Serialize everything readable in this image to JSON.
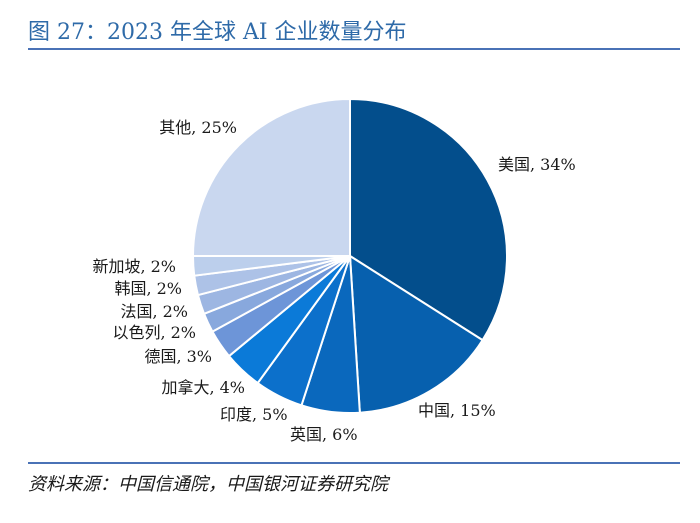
{
  "header": {
    "title": "图 27：2023 年全球 AI 企业数量分布"
  },
  "footer": {
    "source": "资料来源：中国信通院，中国银河证券研究院"
  },
  "chart_data": {
    "type": "pie",
    "title": "图 27：2023 年全球 AI 企业数量分布",
    "slices": [
      {
        "name": "美国",
        "value": 34,
        "label": "美国, 34%",
        "color": "#034e8c"
      },
      {
        "name": "中国",
        "value": 15,
        "label": "中国, 15%",
        "color": "#0760ae"
      },
      {
        "name": "英国",
        "value": 6,
        "label": "英国, 6%",
        "color": "#0a68bd"
      },
      {
        "name": "印度",
        "value": 5,
        "label": "印度, 5%",
        "color": "#0c70cb"
      },
      {
        "name": "加拿大",
        "value": 4,
        "label": "加拿大, 4%",
        "color": "#0b7ad8"
      },
      {
        "name": "德国",
        "value": 3,
        "label": "德国, 3%",
        "color": "#6d95d8"
      },
      {
        "name": "以色列",
        "value": 2,
        "label": "以色列, 2%",
        "color": "#88a8dd"
      },
      {
        "name": "法国",
        "value": 2,
        "label": "法国, 2%",
        "color": "#9db6e2"
      },
      {
        "name": "韩国",
        "value": 2,
        "label": "韩国, 2%",
        "color": "#adc2e7"
      },
      {
        "name": "新加坡",
        "value": 2,
        "label": "新加坡, 2%",
        "color": "#bccfec"
      },
      {
        "name": "其他",
        "value": 25,
        "label": "其他, 25%",
        "color": "#c9d7ef"
      }
    ]
  }
}
